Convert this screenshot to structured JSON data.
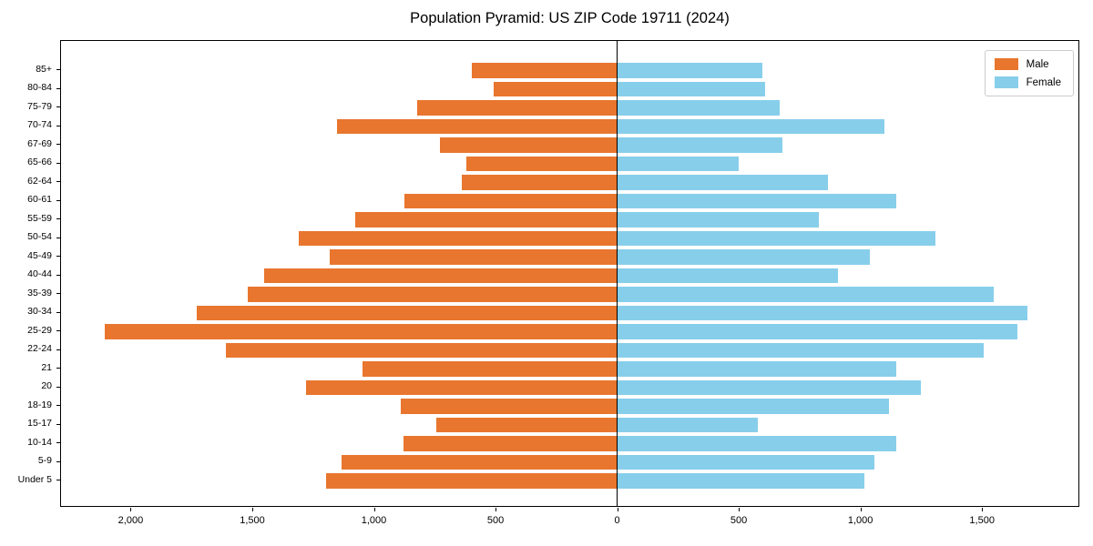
{
  "chart_data": {
    "type": "bar",
    "variant": "population-pyramid",
    "orientation": "horizontal",
    "title": "Population Pyramid: US ZIP Code 19711 (2024)",
    "xlabel": "",
    "ylabel": "",
    "grid": false,
    "categories": [
      "85+",
      "80-84",
      "75-79",
      "70-74",
      "67-69",
      "65-66",
      "62-64",
      "60-61",
      "55-59",
      "50-54",
      "45-49",
      "40-44",
      "35-39",
      "30-34",
      "25-29",
      "22-24",
      "21",
      "20",
      "18-19",
      "15-17",
      "10-14",
      "5-9",
      "Under 5"
    ],
    "series": [
      {
        "name": "Male",
        "color": "#e8762e",
        "direction": "left",
        "values": [
          600,
          510,
          825,
          1155,
          730,
          620,
          640,
          875,
          1080,
          1310,
          1185,
          1455,
          1520,
          1730,
          2110,
          1610,
          1050,
          1280,
          890,
          745,
          880,
          1135,
          1200
        ]
      },
      {
        "name": "Female",
        "color": "#87ceeb",
        "direction": "right",
        "values": [
          600,
          610,
          670,
          1100,
          680,
          500,
          870,
          1150,
          830,
          1310,
          1040,
          910,
          1550,
          1690,
          1650,
          1510,
          1150,
          1250,
          1120,
          580,
          1150,
          1060,
          1020
        ]
      }
    ],
    "axis": {
      "min": -2290,
      "max": 1900,
      "zero_line": true,
      "xticks": [
        {
          "value": -2000,
          "label": "2,000"
        },
        {
          "value": -1500,
          "label": "1,500"
        },
        {
          "value": -1000,
          "label": "1,000"
        },
        {
          "value": -500,
          "label": "500"
        },
        {
          "value": 0,
          "label": "0"
        },
        {
          "value": 500,
          "label": "500"
        },
        {
          "value": 1000,
          "label": "1,000"
        },
        {
          "value": 1500,
          "label": "1,500"
        }
      ]
    },
    "legend": {
      "position": "top-right",
      "entries": [
        "Male",
        "Female"
      ]
    }
  },
  "colors": {
    "background": "#ffffff",
    "axis": "#000000",
    "legend_border": "#cccccc",
    "male": "#e8762e",
    "female": "#87ceeb"
  }
}
